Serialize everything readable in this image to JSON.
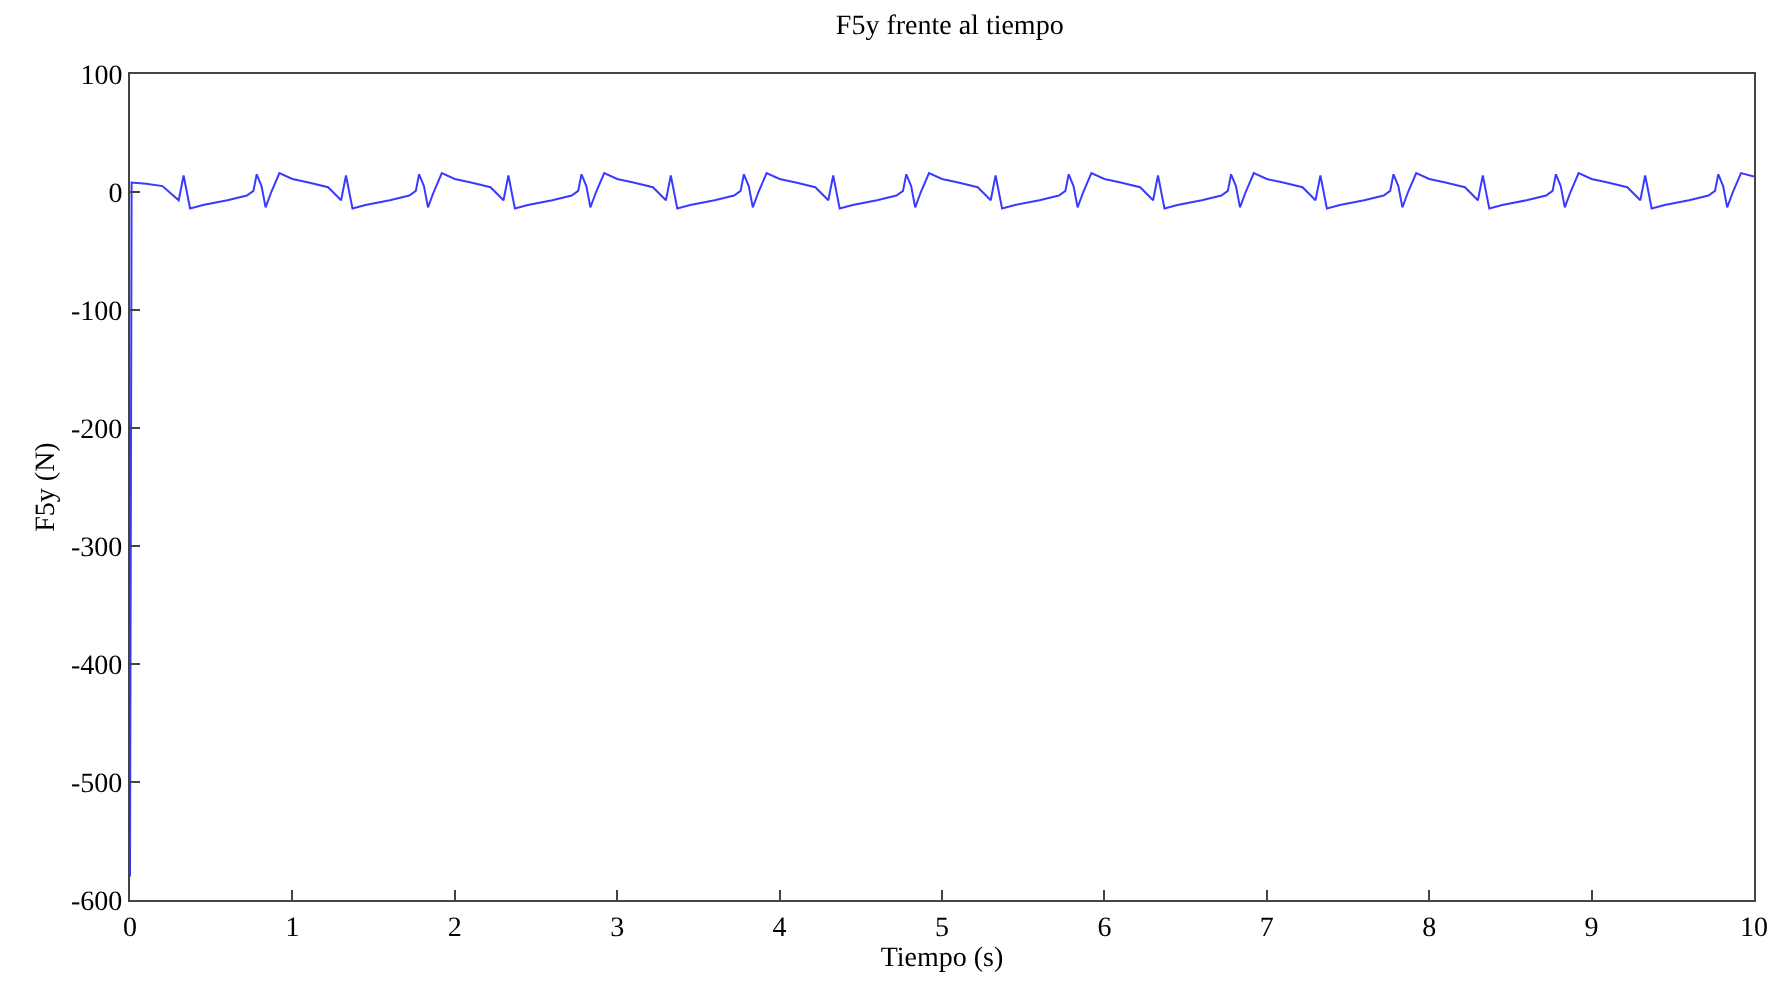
{
  "chart_data": {
    "type": "line",
    "title": "F5y frente al tiempo",
    "xlabel": "Tiempo (s)",
    "ylabel": "F5y (N)",
    "xlim": [
      0,
      10
    ],
    "ylim": [
      -600,
      100
    ],
    "xticks": [
      0,
      1,
      2,
      3,
      4,
      5,
      6,
      7,
      8,
      9,
      10
    ],
    "yticks": [
      -600,
      -500,
      -400,
      -300,
      -200,
      -100,
      0,
      100
    ],
    "line_style": "solid",
    "series": [
      {
        "color": "#3a3aff",
        "x": [
          0,
          0.01,
          0.1,
          0.2,
          0.3,
          0.33,
          0.37,
          0.45,
          0.6,
          0.72,
          0.76,
          0.78,
          0.81,
          0.835,
          0.87,
          0.92,
          1.0,
          1.1,
          1.22,
          1.3,
          1.33,
          1.37,
          1.45,
          1.6,
          1.72,
          1.76,
          1.78,
          1.81,
          1.835,
          1.87,
          1.92,
          2.0,
          2.1,
          2.22,
          2.3,
          2.33,
          2.37,
          2.45,
          2.6,
          2.72,
          2.76,
          2.78,
          2.81,
          2.835,
          2.87,
          2.92,
          3.0,
          3.1,
          3.22,
          3.3,
          3.33,
          3.37,
          3.45,
          3.6,
          3.72,
          3.76,
          3.78,
          3.81,
          3.835,
          3.87,
          3.92,
          4.0,
          4.1,
          4.22,
          4.3,
          4.33,
          4.37,
          4.45,
          4.6,
          4.72,
          4.76,
          4.78,
          4.81,
          4.835,
          4.87,
          4.92,
          5.0,
          5.1,
          5.22,
          5.3,
          5.33,
          5.37,
          5.45,
          5.6,
          5.72,
          5.76,
          5.78,
          5.81,
          5.835,
          5.87,
          5.92,
          6.0,
          6.1,
          6.22,
          6.3,
          6.33,
          6.37,
          6.45,
          6.6,
          6.72,
          6.76,
          6.78,
          6.81,
          6.835,
          6.87,
          6.92,
          7.0,
          7.1,
          7.22,
          7.3,
          7.33,
          7.37,
          7.45,
          7.6,
          7.72,
          7.76,
          7.78,
          7.81,
          7.835,
          7.87,
          7.92,
          8.0,
          8.1,
          8.22,
          8.3,
          8.33,
          8.37,
          8.45,
          8.6,
          8.72,
          8.76,
          8.78,
          8.81,
          8.835,
          8.87,
          8.92,
          9.0,
          9.1,
          9.22,
          9.3,
          9.33,
          9.37,
          9.45,
          9.6,
          9.72,
          9.76,
          9.78,
          9.81,
          9.835,
          9.87,
          9.92,
          10.0
        ],
        "values": [
          -580,
          8,
          7,
          5,
          -7,
          14,
          -14,
          -11,
          -7,
          -3,
          1,
          15,
          5,
          -13,
          0,
          16,
          11,
          8,
          4,
          -7,
          14,
          -14,
          -11,
          -7,
          -3,
          1,
          15,
          5,
          -13,
          0,
          16,
          11,
          8,
          4,
          -7,
          14,
          -14,
          -11,
          -7,
          -3,
          1,
          15,
          5,
          -13,
          0,
          16,
          11,
          8,
          4,
          -7,
          14,
          -14,
          -11,
          -7,
          -3,
          1,
          15,
          5,
          -13,
          0,
          16,
          11,
          8,
          4,
          -7,
          14,
          -14,
          -11,
          -7,
          -3,
          1,
          15,
          5,
          -13,
          0,
          16,
          11,
          8,
          4,
          -7,
          14,
          -14,
          -11,
          -7,
          -3,
          1,
          15,
          5,
          -13,
          0,
          16,
          11,
          8,
          4,
          -7,
          14,
          -14,
          -11,
          -7,
          -3,
          1,
          15,
          5,
          -13,
          0,
          16,
          11,
          8,
          4,
          -7,
          14,
          -14,
          -11,
          -7,
          -3,
          1,
          15,
          5,
          -13,
          0,
          16,
          11,
          8,
          4,
          -7,
          14,
          -14,
          -11,
          -7,
          -3,
          1,
          15,
          5,
          -13,
          0,
          16,
          11,
          8,
          4,
          -7,
          14,
          -14,
          -11,
          -7,
          -3,
          1,
          15,
          5,
          -13,
          0,
          16,
          13
        ]
      }
    ]
  }
}
